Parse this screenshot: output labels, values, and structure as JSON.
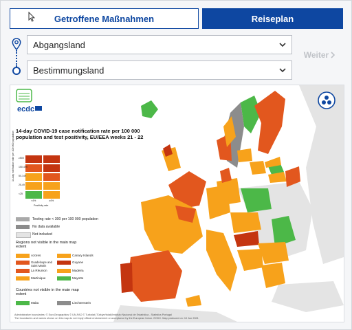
{
  "tabs": [
    {
      "label": "Getroffene Maßnahmen",
      "active": false
    },
    {
      "label": "Reiseplan",
      "active": true
    }
  ],
  "form": {
    "departure": {
      "value": "Abgangsland"
    },
    "destination": {
      "value": "Bestimmungsland"
    },
    "next_label": "Weiter"
  },
  "map": {
    "logo_text": "ecdc",
    "title": "14-day COVID-19 case notification rate per 100 000 population and test positivity, EU/EEA weeks 21 - 22",
    "matrix_y_label": "14-day notification rate per 100 000 population",
    "matrix_y_ticks": [
      "<25",
      "25-49",
      "50-149",
      "150-499",
      "≥500"
    ],
    "matrix_x_label": "Positivity rate",
    "matrix_x_ticks": [
      "<4%",
      "≥4%"
    ],
    "legend": [
      {
        "label": "Testing rate < 300 per 100 000 population",
        "color": "#a9a9a9"
      },
      {
        "label": "No data available",
        "color": "#8c8c8c"
      },
      {
        "label": "Not included",
        "color": "#e4e4e4"
      }
    ],
    "regions_heading": "Regions not visible in the main map extent",
    "regions": [
      {
        "label": "Azores",
        "color": "#f7a21b"
      },
      {
        "label": "Canary Islands",
        "color": "#f7a21b"
      },
      {
        "label": "Guadeloupe and Saint Martin",
        "color": "#e2571e"
      },
      {
        "label": "Guyane",
        "color": "#c43510"
      },
      {
        "label": "La Réunion",
        "color": "#e2571e"
      },
      {
        "label": "Madeira",
        "color": "#f7a21b"
      },
      {
        "label": "Martinique",
        "color": "#f7a21b"
      },
      {
        "label": "Mayotte",
        "color": "#4cb848"
      }
    ],
    "countries_heading": "Countries not visible in the main map extent",
    "countries": [
      {
        "label": "Malta",
        "color": "#4cb848"
      },
      {
        "label": "Liechtenstein",
        "color": "#8c8c8c"
      }
    ],
    "footer1": "Administrative boundaries: © EuroGeographics © UN-FAO © Turkstat (Türkiye/Istat)/Instituto Nacional de Estatística - Statistics Portugal",
    "footer2": "The boundaries and names shown on this map do not imply official endorsement or acceptance by the European Union. ECDC. Map produced on: 10 Jun 2021"
  },
  "colors": {
    "primary": "#0e47a1",
    "green": "#4cb848",
    "orange": "#f7a21b",
    "dark_orange": "#e2571e",
    "red": "#c43510",
    "grey": "#8c8c8c"
  }
}
